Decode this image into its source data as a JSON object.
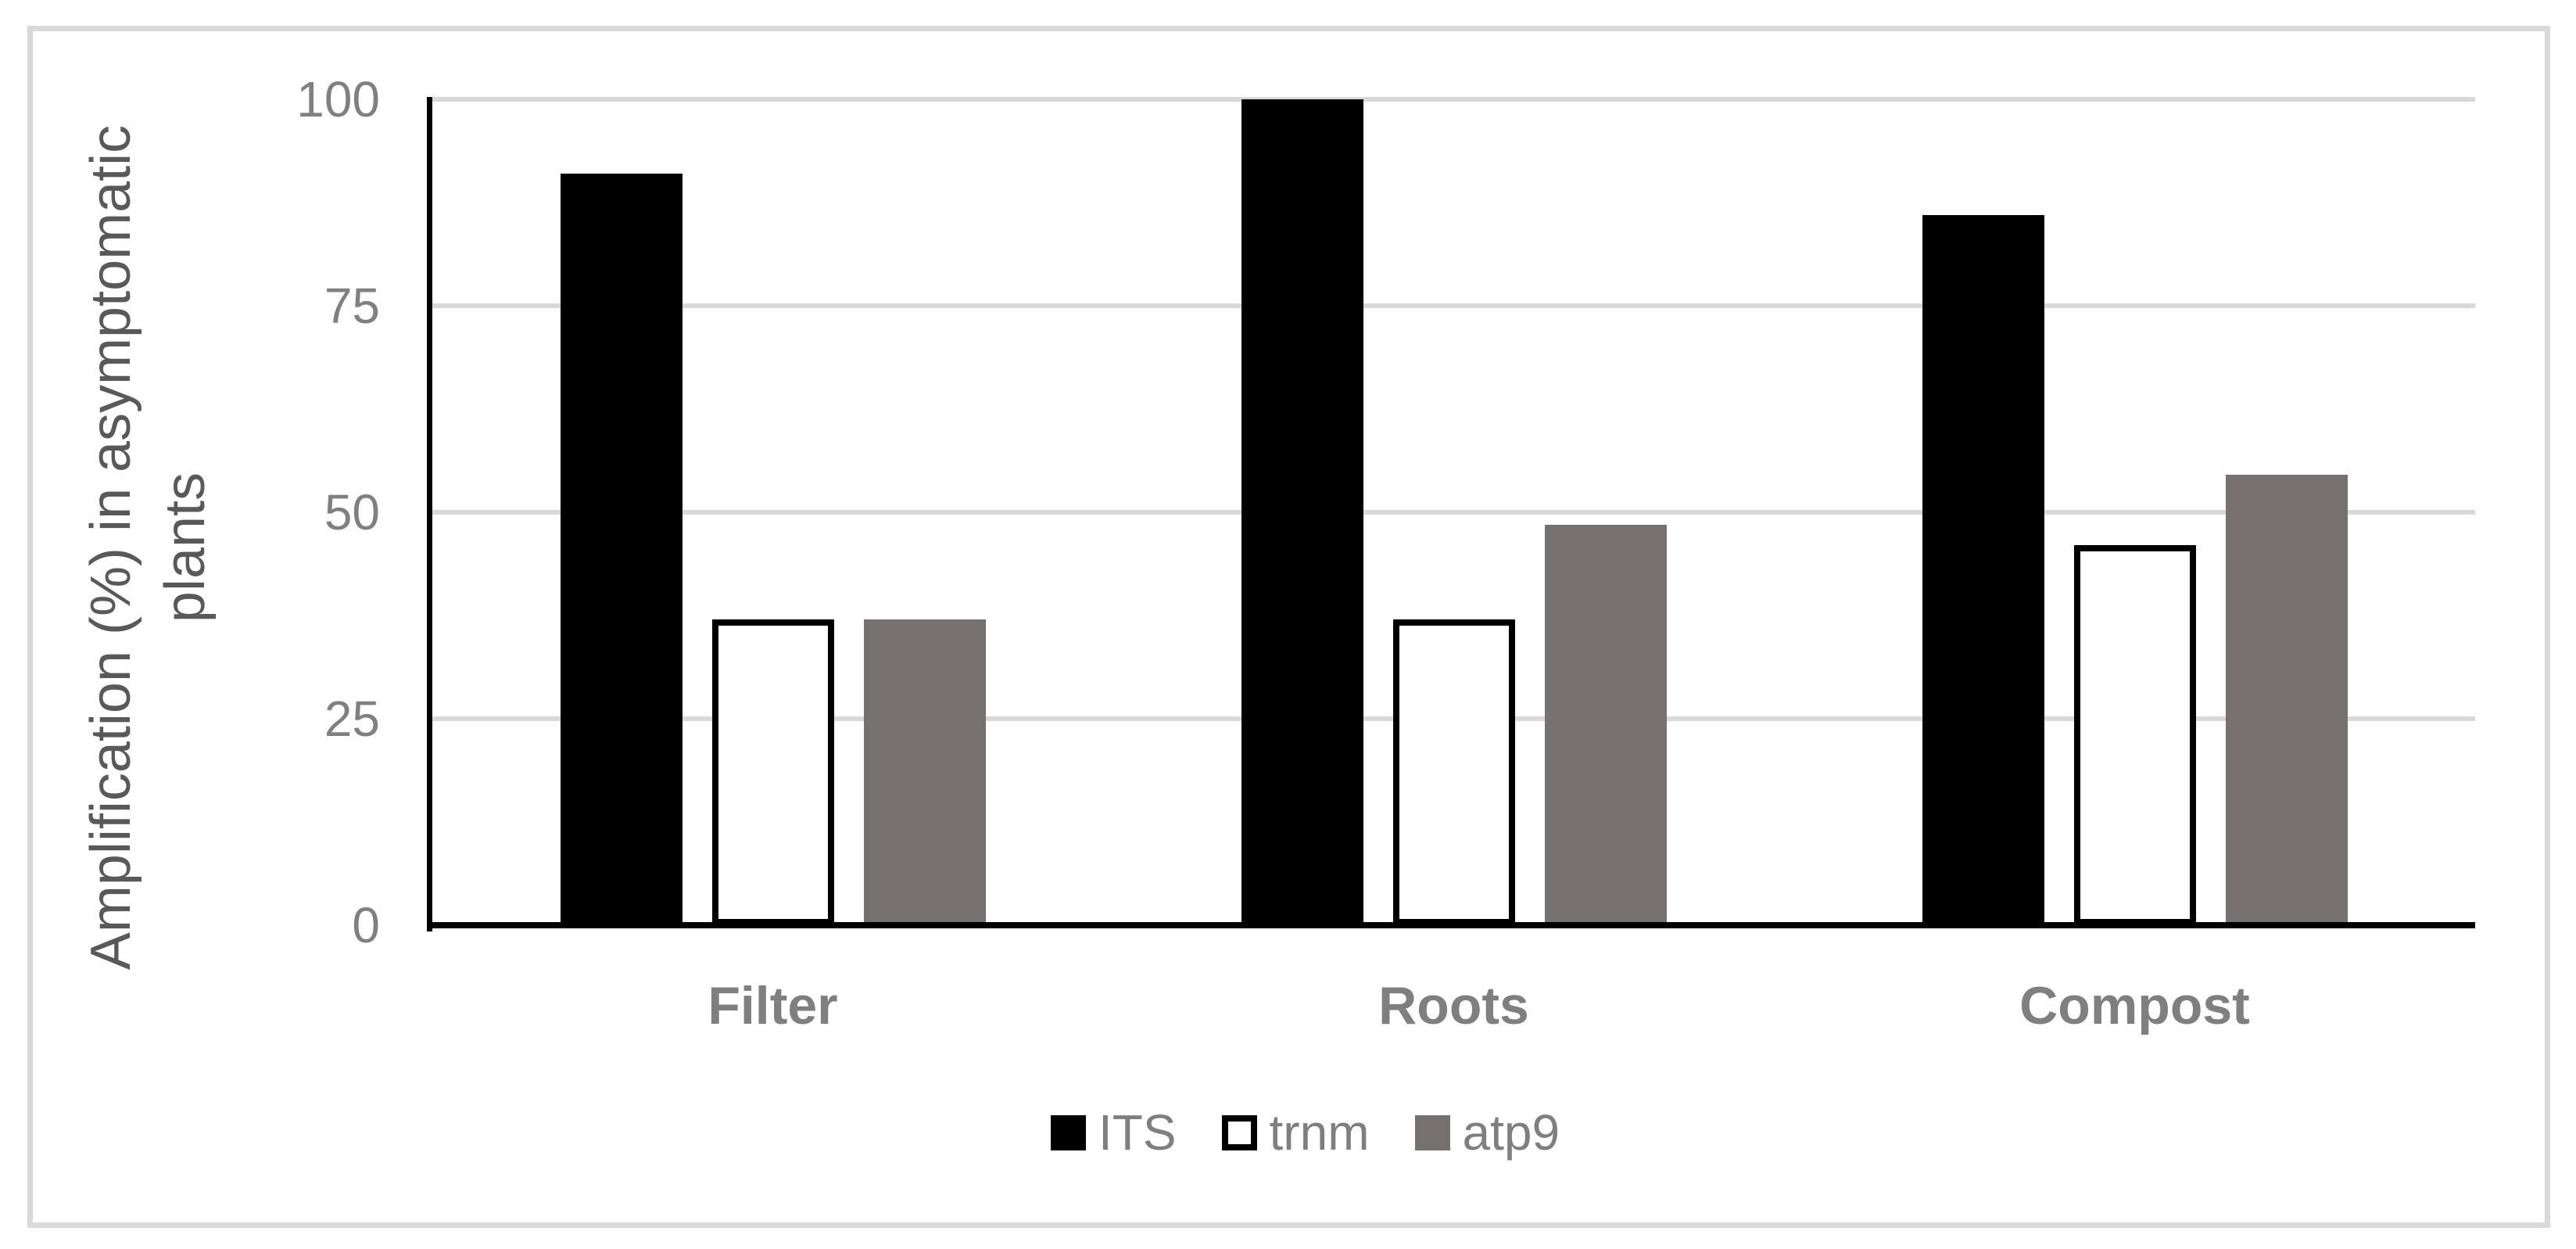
{
  "chart_data": {
    "type": "bar",
    "title": "",
    "categories": [
      "Filter",
      "Roots",
      "Compost"
    ],
    "series": [
      {
        "name": "ITS",
        "values": [
          91,
          100,
          86
        ],
        "fill": "#000000",
        "border": "none"
      },
      {
        "name": "trnm",
        "values": [
          37,
          37,
          46
        ],
        "fill": "#ffffff",
        "border": "#000000"
      },
      {
        "name": "atp9",
        "values": [
          37,
          48.5,
          54.5
        ],
        "fill": "#767071",
        "border": "none"
      }
    ],
    "ylabel": "Amplification (%) in asymptomatic plants",
    "ylabel_lines": [
      "Amplification (%) in asymptomatic",
      "plants"
    ],
    "yticks": [
      0,
      25,
      50,
      75,
      100
    ],
    "ylim": [
      0,
      100
    ],
    "grid": true,
    "legend_position": "bottom"
  },
  "colors": {
    "background": "#ffffff",
    "frame_border": "#d9d9d9",
    "gridline": "#d9d9d9",
    "axis_line": "#000000",
    "tick_label": "#808080",
    "axis_title": "#595959",
    "category_label": "#7f7f7f",
    "legend_text": "#7f7f7f"
  }
}
